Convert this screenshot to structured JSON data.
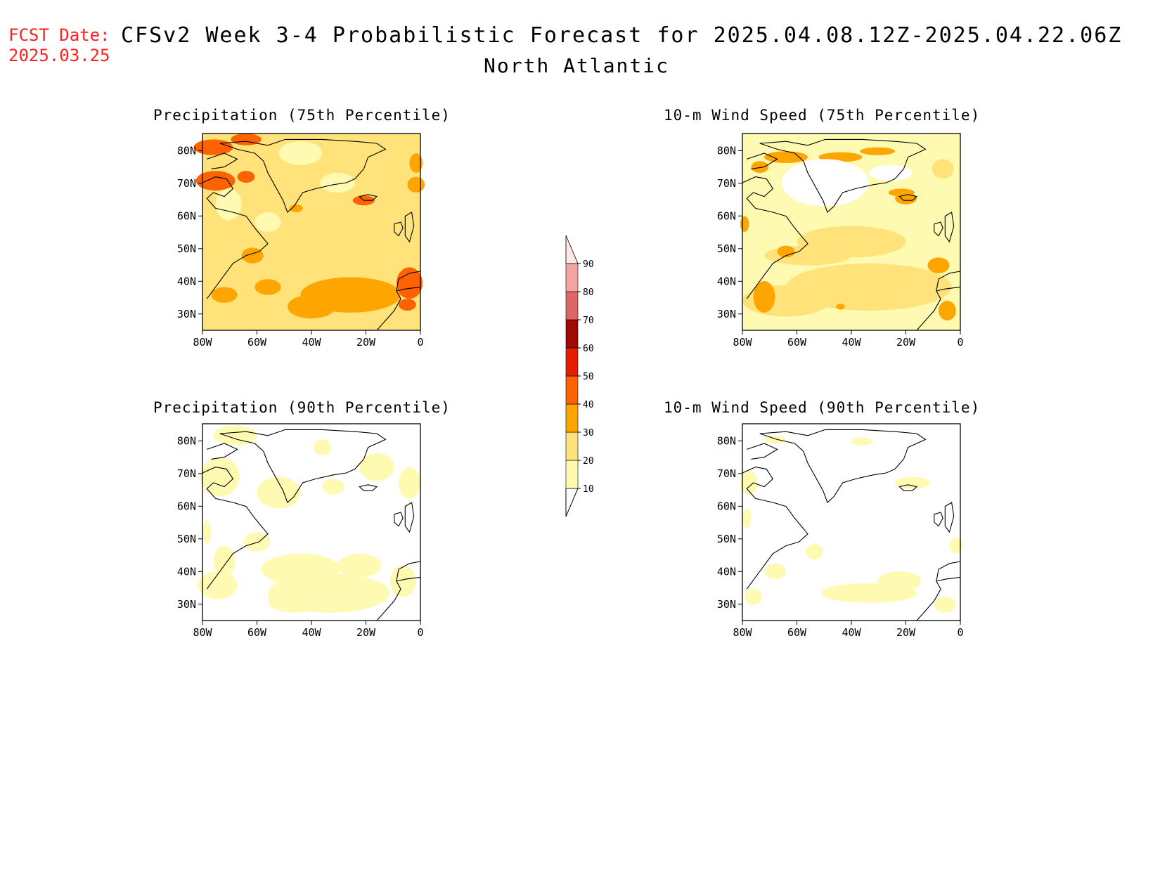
{
  "header": {
    "fcst_label": "FCST Date:",
    "fcst_date": "2025.03.25",
    "title": "CFSv2 Week 3-4 Probabilistic Forecast for 2025.04.08.12Z-2025.04.22.06Z",
    "region": "North Atlantic"
  },
  "axes": {
    "lat_labels": [
      "80N",
      "70N",
      "60N",
      "50N",
      "40N",
      "30N"
    ],
    "lon_labels": [
      "80W",
      "60W",
      "40W",
      "20W",
      "0"
    ]
  },
  "panels": [
    {
      "id": "precip75",
      "title": "Precipitation (75th Percentile)",
      "shading_level": "high"
    },
    {
      "id": "wind75",
      "title": "10-m Wind Speed (75th Percentile)",
      "shading_level": "moderate"
    },
    {
      "id": "precip90",
      "title": "Precipitation (90th Percentile)",
      "shading_level": "low"
    },
    {
      "id": "wind90",
      "title": "10-m Wind Speed (90th Percentile)",
      "shading_level": "very-low"
    }
  ],
  "colorbar": {
    "levels": [
      "10",
      "20",
      "30",
      "40",
      "50",
      "60",
      "70",
      "80",
      "90"
    ],
    "colors": [
      "#fffab2",
      "#ffe37a",
      "#ffa500",
      "#ff6200",
      "#e61e00",
      "#a00a00",
      "#e06666",
      "#f4a3a3",
      "#ffe6e6"
    ]
  }
}
